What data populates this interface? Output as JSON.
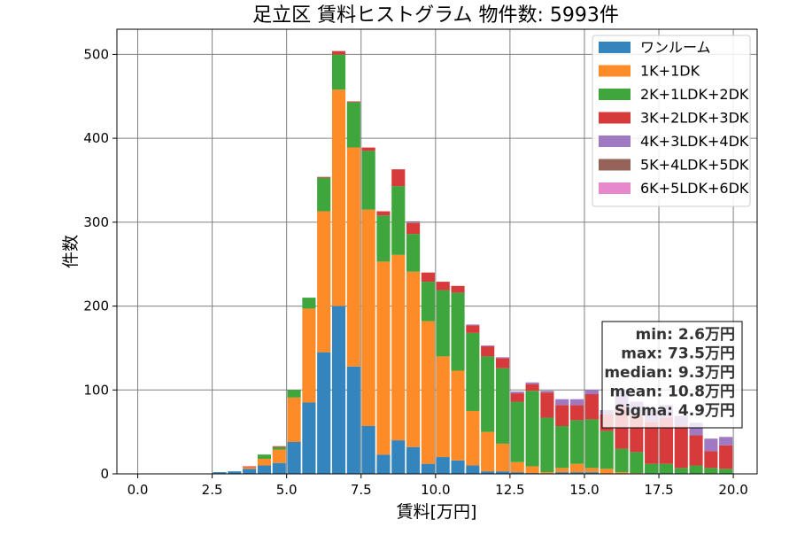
{
  "chart_data": {
    "type": "bar",
    "stacked": true,
    "title": "足立区 賃料ヒストグラム  物件数: 5993件",
    "xlabel": "賃料[万円]",
    "ylabel": "件数",
    "xlim": [
      -0.7,
      20.8
    ],
    "ylim": [
      0,
      530
    ],
    "xticks": [
      0.0,
      2.5,
      5.0,
      7.5,
      10.0,
      12.5,
      15.0,
      17.5,
      20.0
    ],
    "xtick_labels": [
      "0.0",
      "2.5",
      "5.0",
      "7.5",
      "10.0",
      "12.5",
      "15.0",
      "17.5",
      "20.0"
    ],
    "yticks": [
      0,
      100,
      200,
      300,
      400,
      500
    ],
    "ytick_labels": [
      "0",
      "100",
      "200",
      "300",
      "400",
      "500"
    ],
    "grid": true,
    "legend_position": "top-right",
    "bin_width": 0.5,
    "bin_centers": [
      2.75,
      3.25,
      3.75,
      4.25,
      4.75,
      5.25,
      5.75,
      6.25,
      6.75,
      7.25,
      7.75,
      8.25,
      8.75,
      9.25,
      9.75,
      10.25,
      10.75,
      11.25,
      11.75,
      12.25,
      12.75,
      13.25,
      13.75,
      14.25,
      14.75,
      15.25,
      15.75,
      16.25,
      16.75,
      17.25,
      17.75,
      18.25,
      18.75,
      19.25,
      19.75
    ],
    "series": [
      {
        "name": "ワンルーム",
        "color": "#3484bd",
        "values": [
          2,
          3,
          6,
          10,
          13,
          38,
          85,
          145,
          200,
          128,
          57,
          23,
          40,
          32,
          12,
          20,
          16,
          10,
          3,
          3,
          2,
          1,
          0,
          2,
          2,
          2,
          0,
          0,
          0,
          0,
          0,
          0,
          0,
          0,
          0
        ]
      },
      {
        "name": "1K+1DK",
        "color": "#fd8c28",
        "values": [
          0,
          0,
          2,
          8,
          16,
          53,
          112,
          168,
          258,
          261,
          258,
          230,
          221,
          209,
          170,
          120,
          107,
          65,
          47,
          33,
          12,
          8,
          2,
          5,
          10,
          5,
          6,
          2,
          1,
          0,
          0,
          0,
          0,
          0,
          0
        ]
      },
      {
        "name": "2K+1LDK+2DK",
        "color": "#3ea63c",
        "values": [
          0,
          0,
          0,
          5,
          3,
          9,
          13,
          40,
          42,
          54,
          70,
          55,
          82,
          45,
          47,
          79,
          93,
          93,
          90,
          90,
          72,
          90,
          65,
          50,
          52,
          58,
          45,
          28,
          25,
          12,
          12,
          7,
          10,
          7,
          6
        ]
      },
      {
        "name": "3K+2LDK+3DK",
        "color": "#d73a3b",
        "values": [
          0,
          0,
          1,
          0,
          1,
          0,
          0,
          1,
          4,
          1,
          4,
          5,
          20,
          13,
          11,
          10,
          8,
          9,
          12,
          12,
          10,
          8,
          30,
          25,
          18,
          30,
          20,
          50,
          45,
          50,
          55,
          50,
          36,
          20,
          28
        ]
      },
      {
        "name": "4K+3LDK+4DK",
        "color": "#9f79c1",
        "values": [
          0,
          0,
          0,
          0,
          0,
          0,
          0,
          0,
          0,
          0,
          0,
          0,
          0,
          1,
          0,
          0,
          0,
          1,
          1,
          1,
          2,
          2,
          2,
          7,
          7,
          5,
          5,
          20,
          15,
          15,
          15,
          12,
          15,
          15,
          10
        ]
      },
      {
        "name": "5K+4LDK+5DK",
        "color": "#956358",
        "values": [
          0,
          0,
          0,
          0,
          0,
          0,
          0,
          0,
          0,
          0,
          0,
          0,
          0,
          1,
          0,
          0,
          0,
          0,
          0,
          0,
          0,
          0,
          0,
          0,
          0,
          0,
          0,
          0,
          0,
          0,
          0,
          0,
          0,
          0,
          0
        ]
      },
      {
        "name": "6K+5LDK+6DK",
        "color": "#e888cc",
        "values": [
          0,
          0,
          0,
          0,
          0,
          0,
          0,
          0,
          0,
          0,
          0,
          0,
          0,
          0,
          0,
          0,
          0,
          0,
          0,
          0,
          0,
          0,
          0,
          0,
          0,
          0,
          0,
          0,
          0,
          0,
          0,
          0,
          0,
          0,
          0
        ]
      }
    ],
    "stats": [
      "min: 2.6万円",
      "max: 73.5万円",
      "median: 9.3万円",
      "mean: 10.8万円",
      "Sigma: 4.9万円"
    ]
  }
}
